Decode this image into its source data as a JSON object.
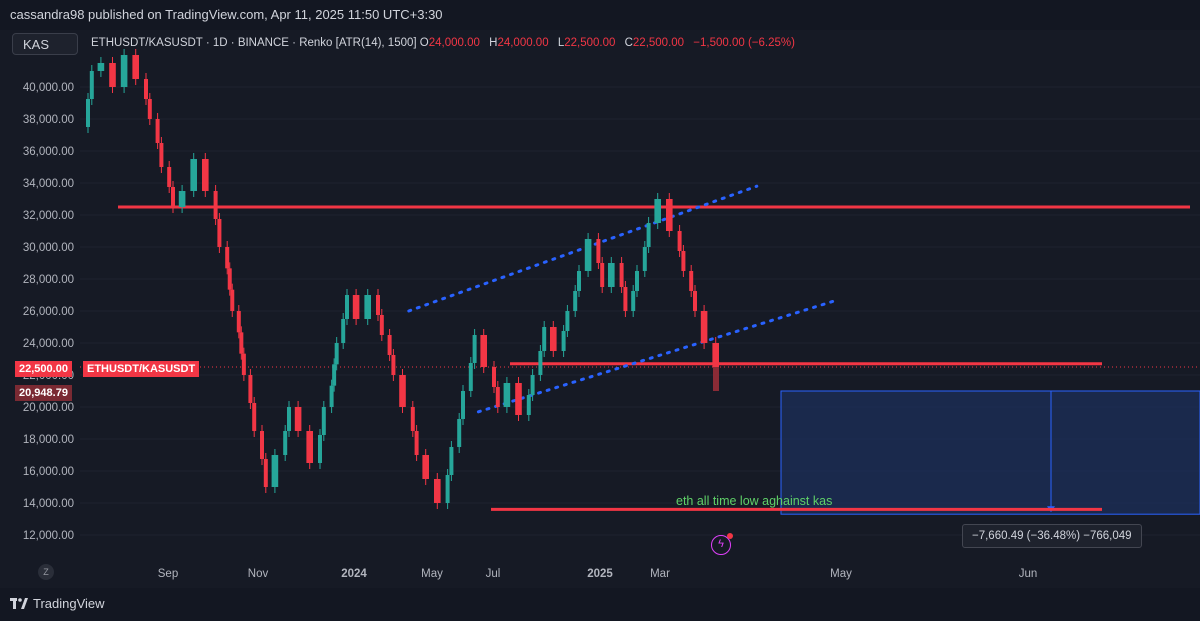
{
  "header": {
    "publisher_line": "cassandra98 published on TradingView.com, Apr 11, 2025 11:50 UTC+3:30"
  },
  "symbol_search": {
    "value": "KAS"
  },
  "legend": {
    "symbol": "ETHUSDT/KASUSDT",
    "interval": "1D",
    "exchange": "BINANCE",
    "chart_style": "Renko [ATR(14), 1500]",
    "separator": "·",
    "o_label": "O",
    "o_value": "24,000.00",
    "h_label": "H",
    "h_value": "24,000.00",
    "l_label": "L",
    "l_value": "22,500.00",
    "c_label": "C",
    "c_value": "22,500.00",
    "change": "−1,500.00 (−6.25%)"
  },
  "price_badges": {
    "last_price": "22,500.00",
    "last_symbol": "ETHUSDT/KASUSDT",
    "projection_price": "20,948.79"
  },
  "measurement": {
    "text": "−7,660.49 (−36.48%) −766,049"
  },
  "annotation": {
    "text": "eth all time low aghainst kas"
  },
  "timezone_button": {
    "label": "Z"
  },
  "footer": {
    "logo_text": "TradingView"
  },
  "colors": {
    "background": "#161a25",
    "up": "#26a69a",
    "down": "#f23645",
    "trendline": "#f23645",
    "channel_dots": "#2962ff",
    "measure_fill": "#1c2f5a",
    "annotation": "#5fd068"
  },
  "chart_data": {
    "type": "renko",
    "symbol": "ETHUSDT/KASUSDT",
    "brick_size": 1500,
    "y_ticks": [
      12000,
      14000,
      16000,
      18000,
      20000,
      22000,
      24000,
      26000,
      28000,
      30000,
      32000,
      34000,
      36000,
      38000,
      40000
    ],
    "y_tick_labels": [
      "12,000.00",
      "14,000.00",
      "16,000.00",
      "18,000.00",
      "20,000.00",
      "22,000.00",
      "24,000.00",
      "26,000.00",
      "28,000.00",
      "30,000.00",
      "32,000.00",
      "34,000.00",
      "36,000.00",
      "38,000.00",
      "40,000.00"
    ],
    "x_labels": [
      "Sep",
      "Nov",
      "2024",
      "May",
      "Jul",
      "2025",
      "Mar",
      "May",
      "Jun"
    ],
    "bold_x_labels": [
      "2024",
      "2025"
    ],
    "bricks_summary": "Renko sequence: 38,000 → 42,000 (Aug) → 31,500 (Oct) → 35,500 → 14,500 (Jan 2024) → 28,500 (May) → 14,000 (Jul) → 25,000 → 19,500 → 33,000 (Feb 2025) → 22,500 (Apr 2025)",
    "path_points": [
      [
        0,
        37500
      ],
      [
        1,
        41000
      ],
      [
        2,
        41500
      ],
      [
        3,
        40000
      ],
      [
        4,
        42000
      ],
      [
        5,
        40500
      ],
      [
        6,
        38000
      ],
      [
        7,
        35000
      ],
      [
        8,
        32500
      ],
      [
        9,
        33500
      ],
      [
        10,
        35500
      ],
      [
        11,
        33500
      ],
      [
        12,
        30000
      ],
      [
        13,
        26000
      ],
      [
        14,
        22000
      ],
      [
        15,
        18500
      ],
      [
        16,
        15000
      ],
      [
        17,
        17000
      ],
      [
        18,
        20000
      ],
      [
        19,
        18500
      ],
      [
        20,
        16500
      ],
      [
        21,
        20000
      ],
      [
        22,
        24000
      ],
      [
        23,
        27000
      ],
      [
        24,
        25500
      ],
      [
        25,
        27000
      ],
      [
        26,
        24500
      ],
      [
        27,
        22000
      ],
      [
        28,
        20000
      ],
      [
        29,
        17000
      ],
      [
        30,
        15500
      ],
      [
        31,
        14000
      ],
      [
        32,
        17500
      ],
      [
        33,
        21000
      ],
      [
        34,
        24500
      ],
      [
        35,
        22500
      ],
      [
        36,
        20000
      ],
      [
        37,
        21500
      ],
      [
        38,
        19500
      ],
      [
        39,
        22000
      ],
      [
        40,
        25000
      ],
      [
        41,
        23500
      ],
      [
        42,
        26000
      ],
      [
        43,
        28500
      ],
      [
        44,
        30500
      ],
      [
        45,
        27500
      ],
      [
        46,
        29000
      ],
      [
        47,
        26000
      ],
      [
        48,
        28500
      ],
      [
        49,
        31500
      ],
      [
        50,
        33000
      ],
      [
        51,
        31000
      ],
      [
        52,
        28500
      ],
      [
        53,
        26000
      ],
      [
        54,
        24000
      ],
      [
        55,
        22500
      ]
    ],
    "horizontal_lines": [
      {
        "name": "resistance",
        "y": 32500
      },
      {
        "name": "support",
        "y": 22700
      },
      {
        "name": "all-time-low",
        "y": 13600
      }
    ],
    "channel": {
      "upper": [
        [
          28,
          26000
        ],
        [
          58,
          33800
        ]
      ],
      "lower": [
        [
          34,
          19700
        ],
        [
          65,
          26700
        ]
      ]
    },
    "measure_range": {
      "from": 21000,
      "to": 13300
    },
    "current_price": 22500
  }
}
